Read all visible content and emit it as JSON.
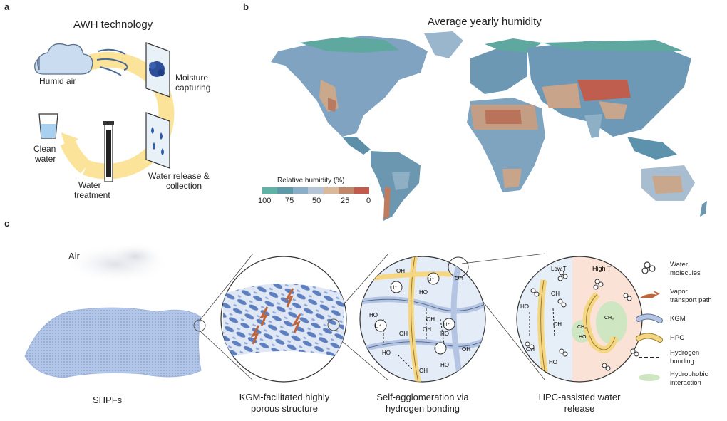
{
  "panel_a": {
    "label": "a",
    "title": "AWH technology",
    "humid_air": "Humid air",
    "moisture_1": "Moisture",
    "moisture_2": "capturing",
    "release_1": "Water release &",
    "release_2": "collection",
    "treatment_1": "Water",
    "treatment_2": "treatment",
    "clean_1": "Clean",
    "clean_2": "water"
  },
  "panel_b": {
    "label": "b",
    "title": "Average yearly humidity",
    "legend_title": "Relative humidity (%)",
    "ticks": [
      "100",
      "75",
      "50",
      "25",
      "0"
    ],
    "colors": [
      "#5fb3a6",
      "#5d9aa8",
      "#8aaec7",
      "#b6c5d6",
      "#d9b99a",
      "#c0876a",
      "#c25a4e"
    ]
  },
  "panel_c": {
    "label": "c",
    "air": "Air",
    "shpfs": "SHPFs",
    "caption1_1": "KGM-facilitated highly",
    "caption1_2": "porous structure",
    "caption2_1": "Self-agglomeration via",
    "caption2_2": "hydrogen bonding",
    "caption3_1": "HPC-assisted water",
    "caption3_2": "release",
    "low_t": "Low T",
    "high_t": "High T",
    "oh": "OH",
    "ho": "HO",
    "li": "Li⁺",
    "ch3": "CH₃"
  },
  "legend_c": {
    "water_1": "Water",
    "water_2": "molecules",
    "vapor_1": "Vapor",
    "vapor_2": "transport path",
    "kgm": "KGM",
    "hpc": "HPC",
    "hbond_1": "Hydrogen",
    "hbond_2": "bonding",
    "hphob_1": "Hydrophobic",
    "hphob_2": "interaction"
  }
}
